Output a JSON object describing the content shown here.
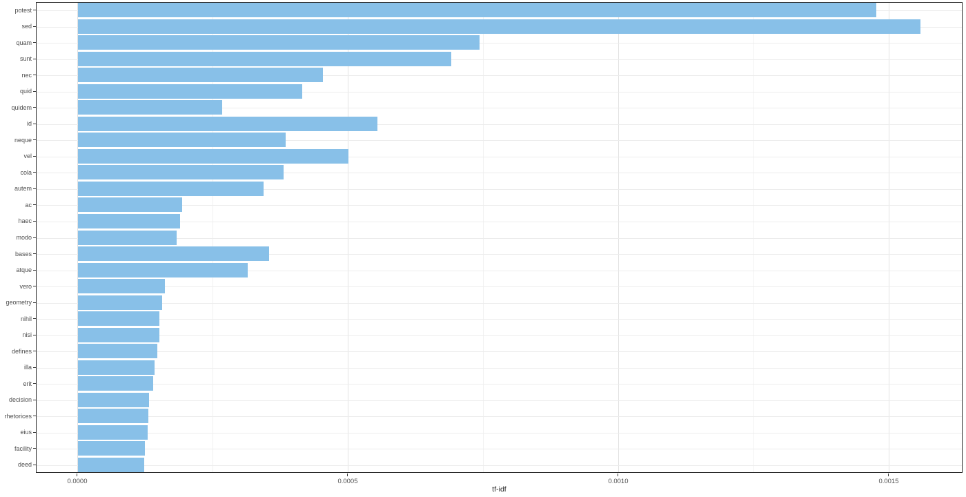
{
  "chart_data": {
    "type": "bar",
    "orientation": "horizontal",
    "title": "",
    "xlabel": "tf-idf",
    "ylabel": "",
    "categories": [
      "potest",
      "sed",
      "quam",
      "sunt",
      "nec",
      "quid",
      "quidem",
      "id",
      "neque",
      "vel",
      "cola",
      "autem",
      "ac",
      "haec",
      "modo",
      "bases",
      "atque",
      "vero",
      "geometry",
      "nihil",
      "nisi",
      "defines",
      "illa",
      "erit",
      "decision",
      "rhetorices",
      "eius",
      "facility",
      "deed"
    ],
    "values": [
      0.001476,
      0.001557,
      0.000742,
      0.00069,
      0.000453,
      0.000415,
      0.000267,
      0.000554,
      0.000384,
      0.0005,
      0.00038,
      0.000343,
      0.000193,
      0.000189,
      0.000182,
      0.000353,
      0.000314,
      0.000161,
      0.000156,
      0.000151,
      0.000151,
      0.000147,
      0.000142,
      0.000139,
      0.000131,
      0.00013,
      0.000129,
      0.000124,
      0.000123
    ],
    "xlim": [
      -7.65e-05,
      0.0016365
    ],
    "x_ticks": [
      {
        "value": 0.0,
        "label": "0.0000"
      },
      {
        "value": 0.0005,
        "label": "0.0005"
      },
      {
        "value": 0.001,
        "label": "0.0010"
      },
      {
        "value": 0.0015,
        "label": "0.0015"
      }
    ],
    "x_minor_ticks": [
      0.00025,
      0.00075,
      0.00125
    ],
    "grid": true,
    "legend": "none",
    "colors": {
      "bar_fill": "#88c0e8",
      "panel_border": "#2b2b2b",
      "major_grid": "#e2e2e2",
      "minor_grid": "#f1f1f1",
      "category_grid": "#ececec",
      "axis_text": "#4d4d4d",
      "axis_title": "#1a1a1a",
      "tick_mark": "#333333"
    }
  }
}
